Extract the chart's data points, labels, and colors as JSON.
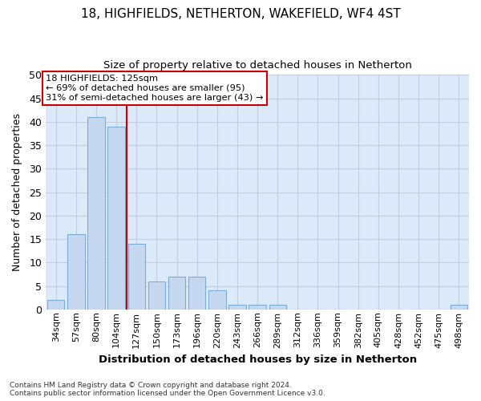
{
  "title1": "18, HIGHFIELDS, NETHERTON, WAKEFIELD, WF4 4ST",
  "title2": "Size of property relative to detached houses in Netherton",
  "xlabel": "Distribution of detached houses by size in Netherton",
  "ylabel": "Number of detached properties",
  "categories": [
    "34sqm",
    "57sqm",
    "80sqm",
    "104sqm",
    "127sqm",
    "150sqm",
    "173sqm",
    "196sqm",
    "220sqm",
    "243sqm",
    "266sqm",
    "289sqm",
    "312sqm",
    "336sqm",
    "359sqm",
    "382sqm",
    "405sqm",
    "428sqm",
    "452sqm",
    "475sqm",
    "498sqm"
  ],
  "values": [
    2,
    16,
    41,
    39,
    14,
    6,
    7,
    7,
    4,
    1,
    1,
    1,
    0,
    0,
    0,
    0,
    0,
    0,
    0,
    0,
    1
  ],
  "bar_color": "#c5d8f0",
  "bar_edge_color": "#7aaed6",
  "vline_color": "#cc0000",
  "vline_index": 4,
  "annotation_box_color": "#cc0000",
  "annotation_lines": [
    "18 HIGHFIELDS: 125sqm",
    "← 69% of detached houses are smaller (95)",
    "31% of semi-detached houses are larger (43) →"
  ],
  "ylim": [
    0,
    50
  ],
  "yticks": [
    0,
    5,
    10,
    15,
    20,
    25,
    30,
    35,
    40,
    45,
    50
  ],
  "grid_color": "#c0cfe0",
  "plot_bg_color": "#dce9f8",
  "fig_bg_color": "#ffffff",
  "footer1": "Contains HM Land Registry data © Crown copyright and database right 2024.",
  "footer2": "Contains public sector information licensed under the Open Government Licence v3.0."
}
